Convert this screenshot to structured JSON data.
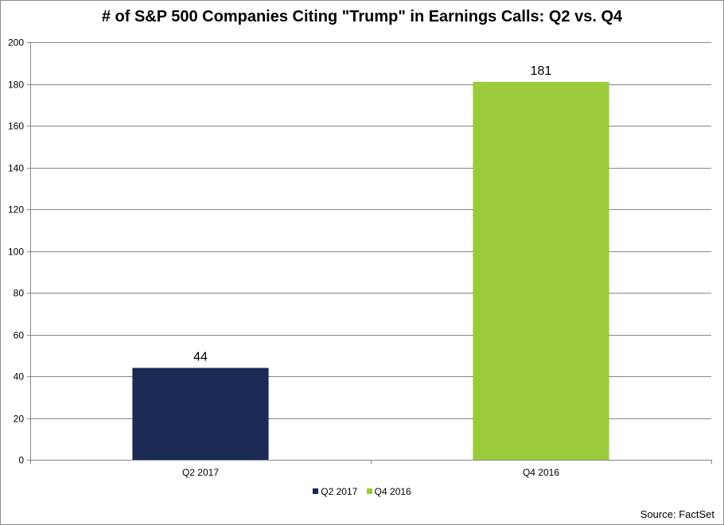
{
  "chart_data": {
    "type": "bar",
    "title": "# of S&P 500 Companies Citing \"Trump\" in Earnings Calls: Q2 vs. Q4",
    "categories": [
      "Q2 2017",
      "Q4 2016"
    ],
    "values": [
      44,
      181
    ],
    "data_labels": [
      "44",
      "181"
    ],
    "colors": [
      "#1b2a55",
      "#9acb3c"
    ],
    "ylim": [
      0,
      200
    ],
    "yticks": [
      0,
      20,
      40,
      60,
      80,
      100,
      120,
      140,
      160,
      180,
      200
    ],
    "grid": true,
    "legend": {
      "position": "bottom",
      "entries": [
        {
          "label": "Q2 2017",
          "color": "#1b2a55"
        },
        {
          "label": "Q4 2016",
          "color": "#9acb3c"
        }
      ]
    },
    "xlabel": "",
    "ylabel": ""
  },
  "source": "Source: FactSet"
}
